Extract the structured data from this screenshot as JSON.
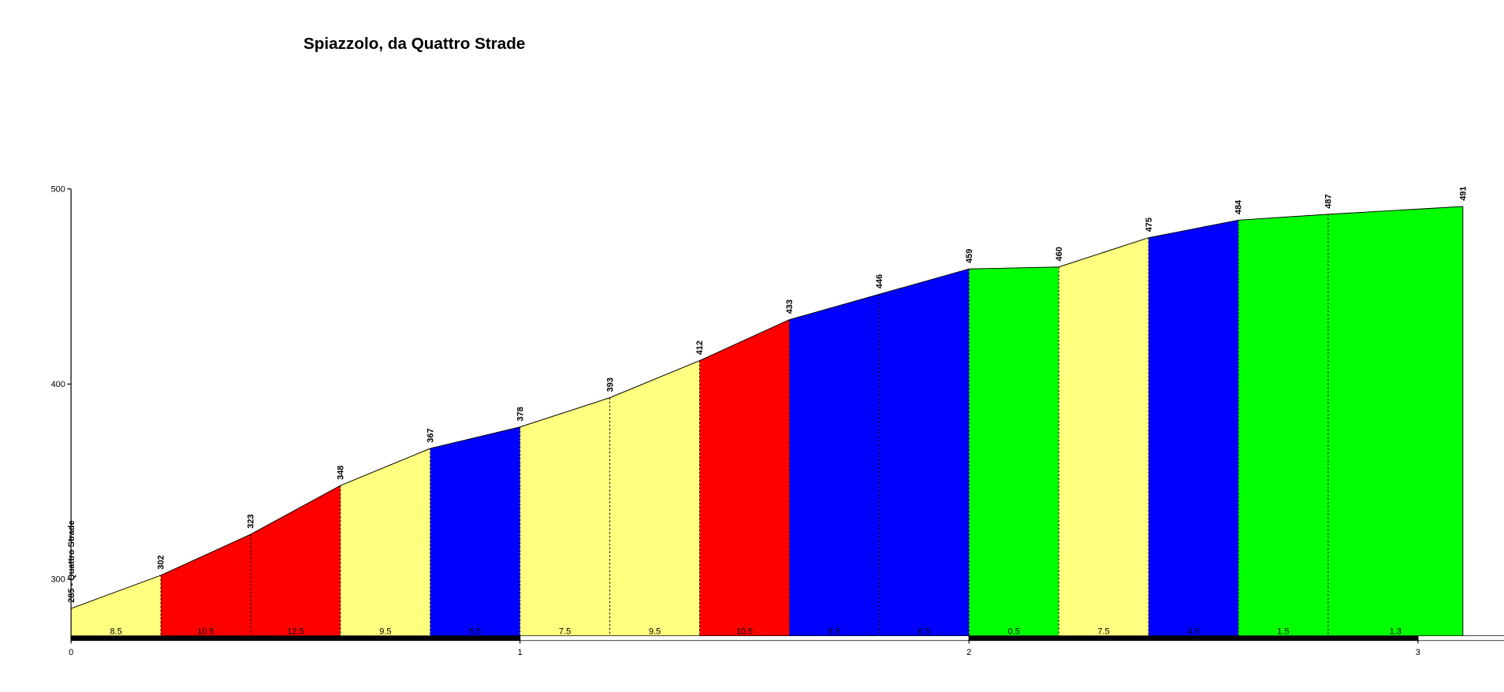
{
  "chart_data": {
    "type": "area",
    "title": "Spiazzolo, da Quattro Strade",
    "x": [
      0,
      0.2,
      0.4,
      0.6,
      0.8,
      1.0,
      1.2,
      1.4,
      1.6,
      1.8,
      2.0,
      2.2,
      2.4,
      2.6,
      2.8,
      3.1
    ],
    "values": [
      285,
      302,
      323,
      348,
      367,
      378,
      393,
      412,
      433,
      446,
      459,
      460,
      475,
      484,
      487,
      491
    ],
    "value_labels": [
      "285 - Quattro Strade",
      "302",
      "323",
      "348",
      "367",
      "378",
      "393",
      "412",
      "433",
      "446",
      "459",
      "460",
      "475",
      "484",
      "487",
      "491"
    ],
    "segments": {
      "gradients": [
        8.5,
        10.5,
        12.5,
        9.5,
        5.5,
        7.5,
        9.5,
        10.5,
        6.5,
        6.5,
        0.5,
        7.5,
        4.5,
        1.5,
        1.3
      ],
      "colors": [
        "#ffff80",
        "#ff0000",
        "#ff0000",
        "#ffff80",
        "#0000ff",
        "#ffff80",
        "#ffff80",
        "#ff0000",
        "#0000ff",
        "#0000ff",
        "#00ff00",
        "#ffff80",
        "#0000ff",
        "#00ff00",
        "#00ff00"
      ]
    },
    "xlim": [
      0,
      3.2
    ],
    "xticks": [
      0,
      1,
      2,
      3
    ],
    "ylim": [
      271,
      500
    ],
    "yticks": [
      300,
      400,
      500
    ]
  }
}
